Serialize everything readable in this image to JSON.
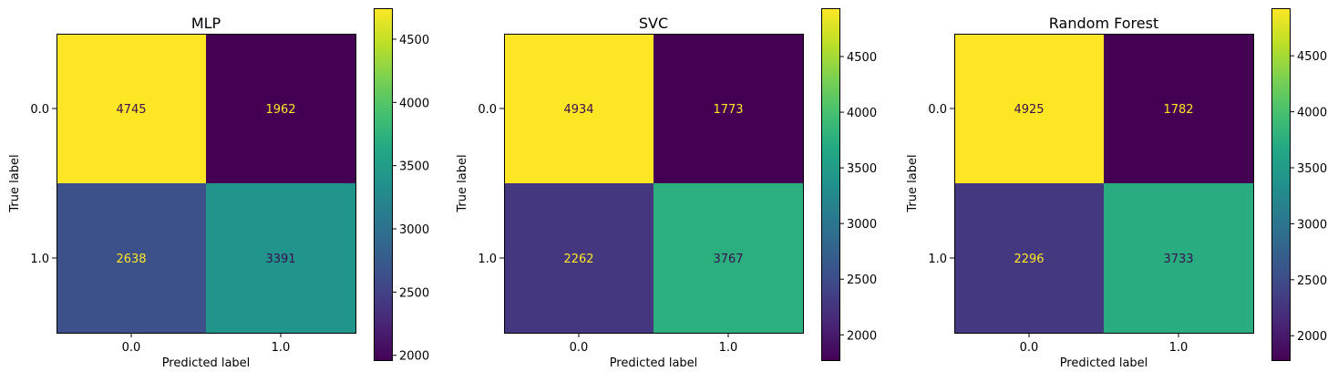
{
  "chart_data": [
    {
      "type": "heatmap",
      "title": "MLP",
      "xlabel": "Predicted label",
      "ylabel": "True label",
      "x_categories": [
        "0.0",
        "1.0"
      ],
      "y_categories": [
        "0.0",
        "1.0"
      ],
      "values": [
        [
          4745,
          1962
        ],
        [
          2638,
          3391
        ]
      ],
      "colormap": "viridis",
      "color_range": [
        1962,
        4745
      ],
      "colorbar_ticks": [
        "2000",
        "2500",
        "3000",
        "3500",
        "4000",
        "4500"
      ]
    },
    {
      "type": "heatmap",
      "title": "SVC",
      "xlabel": "Predicted label",
      "ylabel": "True label",
      "x_categories": [
        "0.0",
        "1.0"
      ],
      "y_categories": [
        "0.0",
        "1.0"
      ],
      "values": [
        [
          4934,
          1773
        ],
        [
          2262,
          3767
        ]
      ],
      "colormap": "viridis",
      "color_range": [
        1773,
        4934
      ],
      "colorbar_ticks": [
        "2000",
        "2500",
        "3000",
        "3500",
        "4000",
        "4500"
      ]
    },
    {
      "type": "heatmap",
      "title": "Random Forest",
      "xlabel": "Predicted label",
      "ylabel": "True label",
      "x_categories": [
        "0.0",
        "1.0"
      ],
      "y_categories": [
        "0.0",
        "1.0"
      ],
      "values": [
        [
          4925,
          1782
        ],
        [
          2296,
          3733
        ]
      ],
      "colormap": "viridis",
      "color_range": [
        1782,
        4925
      ],
      "colorbar_ticks": [
        "2000",
        "2500",
        "3000",
        "3500",
        "4000",
        "4500"
      ]
    }
  ]
}
